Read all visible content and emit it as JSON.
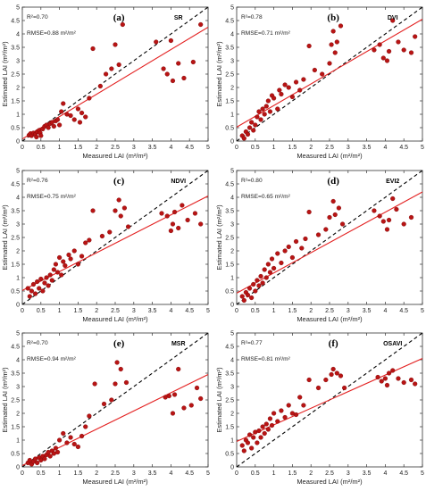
{
  "colors": {
    "points": "#b81414",
    "point_edge": "#7a0606",
    "fit_line": "#e32020",
    "one_to_one": "#000000"
  },
  "chart_data": [
    {
      "type": "scatter",
      "panel_label": "(a)",
      "index_name": "SR",
      "r2_text": "R²=0.70",
      "rmse_text": "RMSE=0.88 m²/m²",
      "xlabel": "Measured LAI (m²/m²)",
      "ylabel": "Estimated LAI (m²/m²)",
      "xlim": [
        0,
        5
      ],
      "ylim": [
        0,
        5
      ],
      "xticks": [
        "0",
        "0.5",
        "1",
        "1.5",
        "2",
        "2.5",
        "3",
        "3.5",
        "4",
        "4.5",
        "5"
      ],
      "yticks": [
        "0",
        "0.5",
        "1",
        "1.5",
        "2",
        "2.5",
        "3",
        "3.5",
        "4",
        "4.5",
        "5"
      ],
      "fit_line": [
        [
          0,
          0.08
        ],
        [
          5,
          4.25
        ]
      ],
      "one_to_one": [
        [
          0,
          0
        ],
        [
          5,
          5
        ]
      ],
      "points": [
        [
          0.18,
          0.22
        ],
        [
          0.22,
          0.28
        ],
        [
          0.25,
          0.2
        ],
        [
          0.3,
          0.3
        ],
        [
          0.35,
          0.25
        ],
        [
          0.38,
          0.15
        ],
        [
          0.4,
          0.35
        ],
        [
          0.45,
          0.4
        ],
        [
          0.48,
          0.3
        ],
        [
          0.5,
          0.2
        ],
        [
          0.55,
          0.45
        ],
        [
          0.6,
          0.55
        ],
        [
          0.65,
          0.6
        ],
        [
          0.7,
          0.5
        ],
        [
          0.75,
          0.65
        ],
        [
          0.8,
          0.7
        ],
        [
          0.85,
          0.55
        ],
        [
          0.9,
          0.75
        ],
        [
          0.95,
          0.8
        ],
        [
          1.0,
          0.6
        ],
        [
          1.05,
          1.1
        ],
        [
          1.1,
          1.4
        ],
        [
          1.2,
          1.0
        ],
        [
          1.3,
          0.95
        ],
        [
          1.4,
          0.8
        ],
        [
          1.5,
          1.2
        ],
        [
          1.55,
          0.7
        ],
        [
          1.6,
          1.05
        ],
        [
          1.7,
          0.9
        ],
        [
          1.8,
          1.6
        ],
        [
          1.9,
          3.45
        ],
        [
          2.1,
          2.05
        ],
        [
          2.25,
          2.5
        ],
        [
          2.4,
          2.7
        ],
        [
          2.5,
          3.6
        ],
        [
          2.6,
          2.85
        ],
        [
          2.7,
          4.35
        ],
        [
          3.6,
          3.7
        ],
        [
          3.8,
          2.7
        ],
        [
          3.9,
          2.5
        ],
        [
          4.0,
          3.75
        ],
        [
          4.05,
          2.25
        ],
        [
          4.2,
          2.9
        ],
        [
          4.35,
          2.35
        ],
        [
          4.6,
          2.95
        ],
        [
          4.8,
          4.35
        ]
      ]
    },
    {
      "type": "scatter",
      "panel_label": "(b)",
      "index_name": "DVI",
      "r2_text": "R²=0.78",
      "rmse_text": "RMSE=0.71 m²/m²",
      "xlabel": "Measured LAI (m²/m²)",
      "ylabel": "Estimated LAI (m²/m²)",
      "xlim": [
        0,
        5
      ],
      "ylim": [
        0,
        5
      ],
      "xticks": [
        "0",
        "0.5",
        "1",
        "1.5",
        "2",
        "2.5",
        "3",
        "3.5",
        "4",
        "4.5",
        "5"
      ],
      "yticks": [
        "0",
        "0.5",
        "1",
        "1.5",
        "2",
        "2.5",
        "3",
        "3.5",
        "4",
        "4.5",
        "5"
      ],
      "fit_line": [
        [
          0,
          0.52
        ],
        [
          5,
          4.55
        ]
      ],
      "one_to_one": [
        [
          0,
          0
        ],
        [
          5,
          5
        ]
      ],
      "points": [
        [
          0.15,
          0.2
        ],
        [
          0.2,
          0.1
        ],
        [
          0.25,
          0.35
        ],
        [
          0.3,
          0.25
        ],
        [
          0.35,
          0.5
        ],
        [
          0.4,
          0.7
        ],
        [
          0.45,
          0.4
        ],
        [
          0.5,
          0.6
        ],
        [
          0.55,
          0.9
        ],
        [
          0.6,
          1.1
        ],
        [
          0.65,
          0.8
        ],
        [
          0.7,
          1.2
        ],
        [
          0.75,
          1.0
        ],
        [
          0.8,
          1.3
        ],
        [
          0.85,
          1.5
        ],
        [
          0.9,
          1.1
        ],
        [
          0.95,
          1.7
        ],
        [
          1.0,
          1.6
        ],
        [
          1.1,
          1.2
        ],
        [
          1.15,
          1.9
        ],
        [
          1.2,
          1.75
        ],
        [
          1.3,
          2.1
        ],
        [
          1.4,
          2.0
        ],
        [
          1.5,
          1.65
        ],
        [
          1.6,
          2.2
        ],
        [
          1.7,
          1.9
        ],
        [
          1.8,
          2.3
        ],
        [
          1.95,
          3.55
        ],
        [
          2.1,
          2.65
        ],
        [
          2.3,
          2.5
        ],
        [
          2.5,
          2.9
        ],
        [
          2.55,
          3.6
        ],
        [
          2.6,
          4.1
        ],
        [
          2.65,
          3.3
        ],
        [
          2.7,
          3.7
        ],
        [
          2.8,
          4.3
        ],
        [
          3.7,
          3.4
        ],
        [
          3.85,
          3.6
        ],
        [
          3.95,
          3.1
        ],
        [
          4.05,
          3.0
        ],
        [
          4.1,
          3.35
        ],
        [
          4.2,
          4.5
        ],
        [
          4.35,
          3.7
        ],
        [
          4.5,
          3.4
        ],
        [
          4.7,
          3.3
        ],
        [
          4.8,
          3.9
        ]
      ]
    },
    {
      "type": "scatter",
      "panel_label": "(c)",
      "index_name": "NDVI",
      "r2_text": "R²=0.76",
      "rmse_text": "RMSE=0.75 m²/m²",
      "xlabel": "Measured LAI (m²/m²)",
      "ylabel": "Estimated LAI (m²/m²)",
      "xlim": [
        0,
        5
      ],
      "ylim": [
        0,
        5
      ],
      "xticks": [
        "0",
        "0.5",
        "1",
        "1.5",
        "2",
        "2.5",
        "3",
        "3.5",
        "4",
        "4.5",
        "5"
      ],
      "yticks": [
        "0",
        "0.5",
        "1",
        "1.5",
        "2",
        "2.5",
        "3",
        "3.5",
        "4",
        "4.5",
        "5"
      ],
      "fit_line": [
        [
          0,
          0.52
        ],
        [
          5,
          4.05
        ]
      ],
      "one_to_one": [
        [
          0,
          0
        ],
        [
          5,
          5
        ]
      ],
      "points": [
        [
          0.15,
          0.6
        ],
        [
          0.2,
          0.3
        ],
        [
          0.25,
          0.5
        ],
        [
          0.3,
          0.75
        ],
        [
          0.35,
          0.4
        ],
        [
          0.4,
          0.85
        ],
        [
          0.45,
          0.6
        ],
        [
          0.5,
          0.95
        ],
        [
          0.55,
          0.5
        ],
        [
          0.6,
          0.8
        ],
        [
          0.65,
          1.0
        ],
        [
          0.7,
          0.7
        ],
        [
          0.75,
          1.1
        ],
        [
          0.8,
          0.9
        ],
        [
          0.85,
          1.3
        ],
        [
          0.9,
          1.5
        ],
        [
          0.95,
          1.2
        ],
        [
          1.0,
          1.75
        ],
        [
          1.05,
          1.1
        ],
        [
          1.1,
          1.6
        ],
        [
          1.15,
          1.45
        ],
        [
          1.25,
          1.85
        ],
        [
          1.3,
          1.7
        ],
        [
          1.4,
          2.0
        ],
        [
          1.5,
          1.5
        ],
        [
          1.6,
          1.8
        ],
        [
          1.7,
          2.3
        ],
        [
          1.8,
          2.4
        ],
        [
          1.9,
          3.5
        ],
        [
          2.15,
          2.55
        ],
        [
          2.35,
          2.7
        ],
        [
          2.5,
          3.5
        ],
        [
          2.6,
          3.9
        ],
        [
          2.65,
          3.3
        ],
        [
          2.75,
          3.6
        ],
        [
          2.85,
          2.9
        ],
        [
          3.75,
          3.4
        ],
        [
          3.9,
          3.3
        ],
        [
          4.0,
          2.75
        ],
        [
          4.05,
          3.0
        ],
        [
          4.1,
          3.45
        ],
        [
          4.2,
          2.85
        ],
        [
          4.3,
          3.7
        ],
        [
          4.45,
          3.15
        ],
        [
          4.65,
          3.4
        ],
        [
          4.8,
          3.0
        ]
      ]
    },
    {
      "type": "scatter",
      "panel_label": "(d)",
      "index_name": "EVI2",
      "r2_text": "R²=0.80",
      "rmse_text": "RMSE=0.65 m²/m²",
      "xlabel": "Measured LAI (m²/m²)",
      "ylabel": "Estimated LAI (m²/m²)",
      "xlim": [
        0,
        5
      ],
      "ylim": [
        0,
        5
      ],
      "xticks": [
        "0",
        "0.5",
        "1",
        "1.5",
        "2",
        "2.5",
        "3",
        "3.5",
        "4",
        "4.5",
        "5"
      ],
      "yticks": [
        "0",
        "0.5",
        "1",
        "1.5",
        "2",
        "2.5",
        "3",
        "3.5",
        "4",
        "4.5",
        "5"
      ],
      "fit_line": [
        [
          0,
          0.42
        ],
        [
          5,
          4.2
        ]
      ],
      "one_to_one": [
        [
          0,
          0
        ],
        [
          5,
          5
        ]
      ],
      "points": [
        [
          0.15,
          0.3
        ],
        [
          0.2,
          0.15
        ],
        [
          0.25,
          0.45
        ],
        [
          0.3,
          0.35
        ],
        [
          0.35,
          0.6
        ],
        [
          0.4,
          0.25
        ],
        [
          0.45,
          0.75
        ],
        [
          0.5,
          0.5
        ],
        [
          0.55,
          0.9
        ],
        [
          0.6,
          0.7
        ],
        [
          0.65,
          1.05
        ],
        [
          0.7,
          0.8
        ],
        [
          0.75,
          1.3
        ],
        [
          0.8,
          1.0
        ],
        [
          0.85,
          1.5
        ],
        [
          0.9,
          1.2
        ],
        [
          0.95,
          1.7
        ],
        [
          1.0,
          1.35
        ],
        [
          1.1,
          1.9
        ],
        [
          1.2,
          1.55
        ],
        [
          1.3,
          2.0
        ],
        [
          1.4,
          2.15
        ],
        [
          1.5,
          1.75
        ],
        [
          1.6,
          2.35
        ],
        [
          1.75,
          2.1
        ],
        [
          1.85,
          2.45
        ],
        [
          1.95,
          3.45
        ],
        [
          2.2,
          2.6
        ],
        [
          2.4,
          2.8
        ],
        [
          2.5,
          3.25
        ],
        [
          2.6,
          3.85
        ],
        [
          2.65,
          3.35
        ],
        [
          2.75,
          3.6
        ],
        [
          2.85,
          3.0
        ],
        [
          3.7,
          3.5
        ],
        [
          3.85,
          3.3
        ],
        [
          3.95,
          3.1
        ],
        [
          4.05,
          2.8
        ],
        [
          4.1,
          3.15
        ],
        [
          4.2,
          3.95
        ],
        [
          4.3,
          3.55
        ],
        [
          4.5,
          3.0
        ],
        [
          4.7,
          3.25
        ]
      ]
    },
    {
      "type": "scatter",
      "panel_label": "(e)",
      "index_name": "MSR",
      "r2_text": "R²=0.70",
      "rmse_text": "RMSE=0.94 m²/m²",
      "xlabel": "Measured LAI (m²/m²)",
      "ylabel": "Estimated LAI (m²/m²)",
      "xlim": [
        0,
        5
      ],
      "ylim": [
        0,
        5
      ],
      "xticks": [
        "0",
        "0.5",
        "1",
        "1.5",
        "2",
        "2.5",
        "3",
        "3.5",
        "4",
        "4.5",
        "5"
      ],
      "yticks": [
        "0",
        "0.5",
        "1",
        "1.5",
        "2",
        "2.5",
        "3",
        "3.5",
        "4",
        "4.5",
        "5"
      ],
      "fit_line": [
        [
          0,
          0.05
        ],
        [
          5,
          3.45
        ]
      ],
      "one_to_one": [
        [
          0,
          0
        ],
        [
          5,
          5
        ]
      ],
      "points": [
        [
          0.15,
          0.15
        ],
        [
          0.2,
          0.25
        ],
        [
          0.25,
          0.1
        ],
        [
          0.3,
          0.2
        ],
        [
          0.35,
          0.3
        ],
        [
          0.4,
          0.15
        ],
        [
          0.45,
          0.35
        ],
        [
          0.5,
          0.25
        ],
        [
          0.55,
          0.4
        ],
        [
          0.6,
          0.3
        ],
        [
          0.65,
          0.45
        ],
        [
          0.7,
          0.55
        ],
        [
          0.75,
          0.4
        ],
        [
          0.8,
          0.6
        ],
        [
          0.85,
          0.5
        ],
        [
          0.9,
          0.7
        ],
        [
          0.95,
          0.55
        ],
        [
          1.0,
          1.0
        ],
        [
          1.1,
          1.25
        ],
        [
          1.2,
          0.9
        ],
        [
          1.3,
          1.1
        ],
        [
          1.4,
          0.85
        ],
        [
          1.5,
          0.75
        ],
        [
          1.6,
          1.15
        ],
        [
          1.7,
          1.5
        ],
        [
          1.8,
          1.9
        ],
        [
          1.95,
          3.1
        ],
        [
          2.2,
          2.35
        ],
        [
          2.4,
          2.5
        ],
        [
          2.5,
          3.1
        ],
        [
          2.55,
          3.9
        ],
        [
          2.65,
          3.65
        ],
        [
          2.8,
          3.15
        ],
        [
          3.85,
          2.6
        ],
        [
          3.95,
          2.65
        ],
        [
          4.05,
          2.0
        ],
        [
          4.1,
          2.7
        ],
        [
          4.2,
          3.65
        ],
        [
          4.35,
          2.2
        ],
        [
          4.55,
          2.3
        ],
        [
          4.7,
          2.95
        ],
        [
          4.8,
          2.55
        ]
      ]
    },
    {
      "type": "scatter",
      "panel_label": "(f)",
      "index_name": "OSAVI",
      "r2_text": "R²=0.77",
      "rmse_text": "RMSE=0.81 m²/m²",
      "xlabel": "Measured LAI (m²/m²)",
      "ylabel": "Estimated LAI (m²/m²)",
      "xlim": [
        0,
        5
      ],
      "ylim": [
        0,
        5
      ],
      "xticks": [
        "0",
        "0.5",
        "1",
        "1.5",
        "2",
        "2.5",
        "3",
        "3.5",
        "4",
        "4.5",
        "5"
      ],
      "yticks": [
        "0",
        "0.5",
        "1",
        "1.5",
        "2",
        "2.5",
        "3",
        "3.5",
        "4",
        "4.5",
        "5"
      ],
      "fit_line": [
        [
          0,
          0.95
        ],
        [
          5,
          4.05
        ]
      ],
      "one_to_one": [
        [
          0,
          0
        ],
        [
          5,
          5
        ]
      ],
      "points": [
        [
          0.15,
          0.8
        ],
        [
          0.2,
          0.6
        ],
        [
          0.25,
          1.0
        ],
        [
          0.3,
          0.9
        ],
        [
          0.35,
          1.2
        ],
        [
          0.4,
          0.7
        ],
        [
          0.45,
          1.1
        ],
        [
          0.5,
          1.3
        ],
        [
          0.55,
          0.9
        ],
        [
          0.6,
          1.35
        ],
        [
          0.65,
          1.1
        ],
        [
          0.7,
          1.5
        ],
        [
          0.75,
          1.25
        ],
        [
          0.8,
          1.6
        ],
        [
          0.85,
          1.4
        ],
        [
          0.9,
          1.8
        ],
        [
          0.95,
          1.55
        ],
        [
          1.0,
          2.0
        ],
        [
          1.1,
          1.7
        ],
        [
          1.2,
          2.1
        ],
        [
          1.3,
          1.85
        ],
        [
          1.4,
          2.3
        ],
        [
          1.5,
          2.0
        ],
        [
          1.6,
          1.95
        ],
        [
          1.7,
          2.6
        ],
        [
          1.8,
          2.3
        ],
        [
          1.95,
          3.25
        ],
        [
          2.2,
          2.95
        ],
        [
          2.4,
          3.25
        ],
        [
          2.55,
          3.45
        ],
        [
          2.6,
          3.65
        ],
        [
          2.7,
          3.5
        ],
        [
          2.8,
          3.4
        ],
        [
          2.9,
          2.95
        ],
        [
          3.8,
          3.35
        ],
        [
          3.9,
          3.2
        ],
        [
          4.0,
          3.3
        ],
        [
          4.05,
          3.05
        ],
        [
          4.1,
          3.5
        ],
        [
          4.2,
          3.6
        ],
        [
          4.35,
          3.3
        ],
        [
          4.5,
          3.15
        ],
        [
          4.7,
          3.25
        ],
        [
          4.8,
          3.1
        ]
      ]
    }
  ]
}
